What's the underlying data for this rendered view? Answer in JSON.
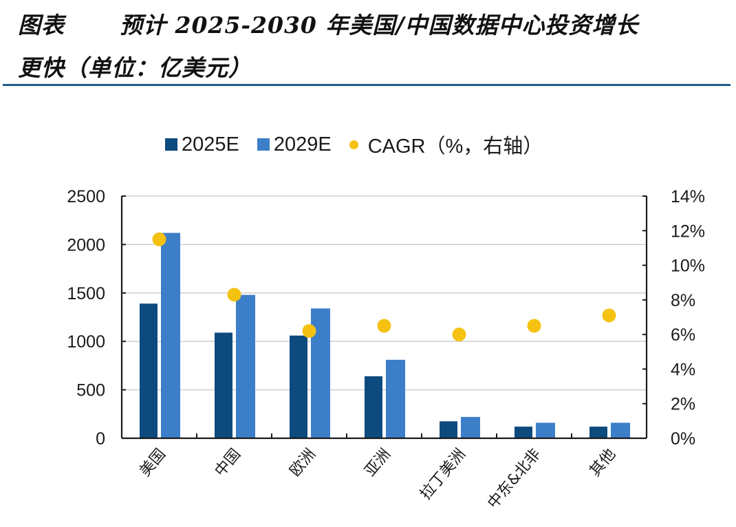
{
  "header": {
    "prefix": "图表",
    "title_line1": "预计 2025-2030 年美国/中国数据中心投资增长",
    "title_line2": "更快（单位：亿美元）"
  },
  "colors": {
    "series_2025": "#0d4a7e",
    "series_2029": "#3d7ec9",
    "cagr": "#f5c211",
    "separator": "#1f5c8b",
    "grid": "#c8c8c8",
    "axis": "#1a1a1a"
  },
  "chart_data": {
    "type": "bar",
    "title": "预计 2025-2030 年美国/中国数据中心投资增长更快（单位：亿美元）",
    "categories": [
      "美国",
      "中国",
      "欧洲",
      "亚洲",
      "拉丁美洲",
      "中东&北非",
      "其他"
    ],
    "series": [
      {
        "name": "2025E",
        "type": "bar",
        "axis": "left",
        "values": [
          1390,
          1090,
          1060,
          640,
          175,
          120,
          120
        ]
      },
      {
        "name": "2029E",
        "type": "bar",
        "axis": "left",
        "values": [
          2120,
          1480,
          1340,
          810,
          220,
          160,
          160
        ]
      },
      {
        "name": "CAGR（%，右轴）",
        "type": "scatter",
        "axis": "right",
        "values": [
          11.5,
          8.3,
          6.2,
          6.5,
          6.0,
          6.5,
          7.1
        ]
      }
    ],
    "legend": [
      "2025E",
      "2029E",
      "CAGR（%，右轴）"
    ],
    "legend_position": "top",
    "xlabel": "",
    "ylabel_left": "",
    "ylabel_right": "",
    "ylim_left": [
      0,
      2500
    ],
    "yticks_left": [
      "0",
      "500",
      "1000",
      "1500",
      "2000",
      "2500"
    ],
    "ylim_right": [
      0,
      14
    ],
    "yticks_right": [
      "0%",
      "2%",
      "4%",
      "6%",
      "8%",
      "10%",
      "12%",
      "14%"
    ],
    "grid": true
  }
}
